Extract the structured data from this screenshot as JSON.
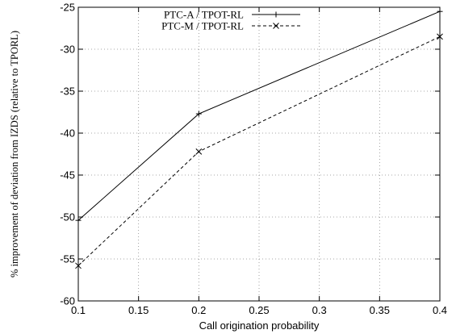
{
  "chart_data": {
    "type": "line",
    "title": "",
    "xlabel": "Call origination probability",
    "ylabel": "% improvement of deviation from IZDS (relative to TPORL)",
    "xlim": [
      0.1,
      0.4
    ],
    "ylim": [
      -60,
      -25
    ],
    "x_ticks": [
      "0.1",
      "0.15",
      "0.2",
      "0.25",
      "0.3",
      "0.35",
      "0.4"
    ],
    "y_ticks": [
      "-60",
      "-55",
      "-50",
      "-45",
      "-40",
      "-35",
      "-30",
      "-25"
    ],
    "grid": true,
    "legend_position": "top-right",
    "series": [
      {
        "name": "PTC-A / TPOT-RL",
        "x": [
          0.1,
          0.2,
          0.4
        ],
        "y": [
          -50.4,
          -37.7,
          -25.5
        ],
        "line_style": "solid",
        "marker": "plus"
      },
      {
        "name": "PTC-M / TPOT-RL",
        "x": [
          0.1,
          0.2,
          0.4
        ],
        "y": [
          -55.8,
          -42.2,
          -28.5
        ],
        "line_style": "dashed",
        "marker": "cross"
      }
    ]
  }
}
